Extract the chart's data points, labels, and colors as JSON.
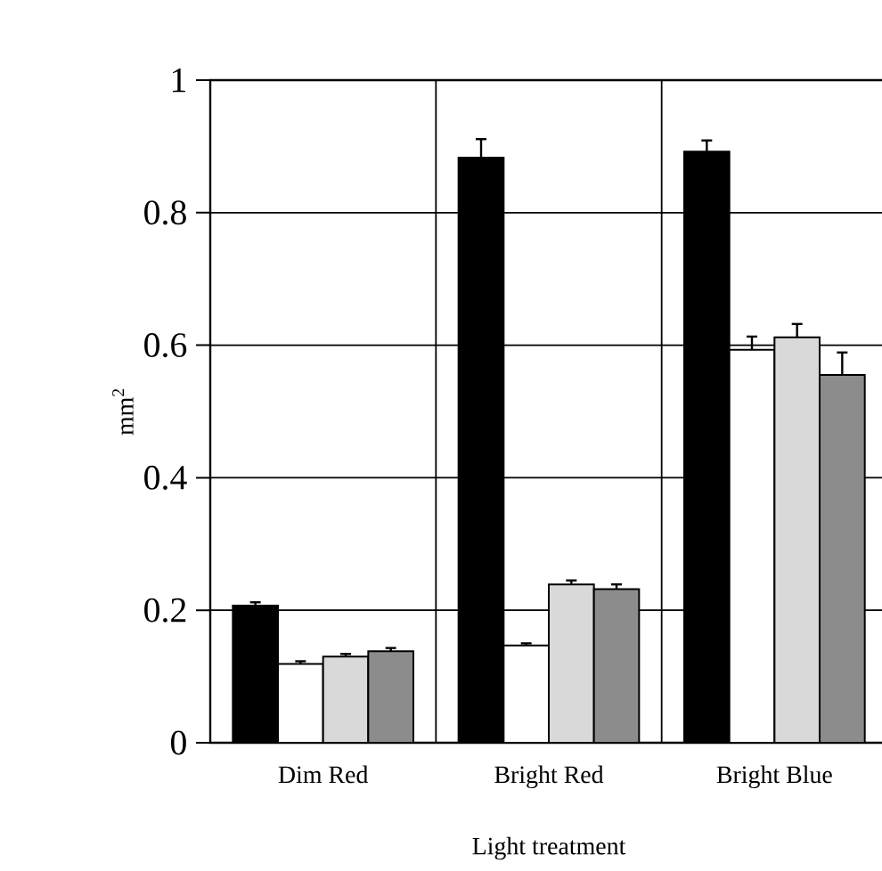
{
  "chart_data": {
    "type": "bar",
    "xlabel": "Light treatment",
    "ylabel": "mm$^{2}$",
    "categories": [
      "Dim Red",
      "Bright Red",
      "Bright Blue"
    ],
    "series": [
      {
        "color": "#000000",
        "values": [
          0.207,
          0.883,
          0.892
        ],
        "errors": [
          0.005,
          0.028,
          0.017
        ]
      },
      {
        "color": "#ffffff",
        "values": [
          0.119,
          0.147,
          0.593
        ],
        "errors": [
          0.004,
          0.003,
          0.02
        ]
      },
      {
        "color": "#d9d9d9",
        "values": [
          0.13,
          0.239,
          0.612
        ],
        "errors": [
          0.004,
          0.006,
          0.02
        ]
      },
      {
        "color": "#8c8c8c",
        "values": [
          0.138,
          0.232,
          0.555
        ],
        "errors": [
          0.005,
          0.007,
          0.034
        ]
      }
    ],
    "ylim": [
      0,
      1
    ],
    "yticks": [
      0,
      0.2,
      0.4,
      0.6,
      0.8,
      1
    ],
    "grid": true
  }
}
